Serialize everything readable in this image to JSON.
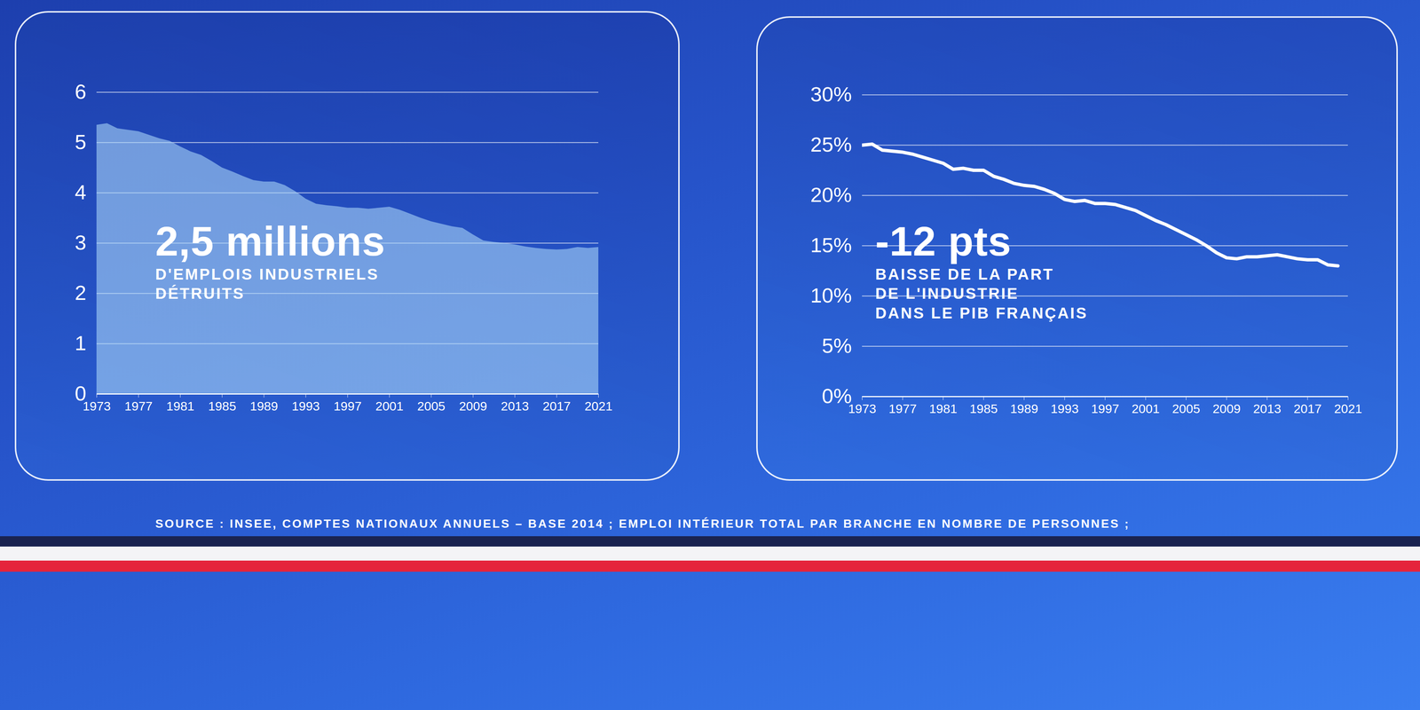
{
  "chart_data": [
    {
      "type": "area",
      "title": "2,5 millions",
      "subtitle": "D'EMPLOIS INDUSTRIELS\nDÉTRUITS",
      "x": [
        1973,
        1974,
        1975,
        1976,
        1977,
        1978,
        1979,
        1980,
        1981,
        1982,
        1983,
        1984,
        1985,
        1986,
        1987,
        1988,
        1989,
        1990,
        1991,
        1992,
        1993,
        1994,
        1995,
        1996,
        1997,
        1998,
        1999,
        2000,
        2001,
        2002,
        2003,
        2004,
        2005,
        2006,
        2007,
        2008,
        2009,
        2010,
        2011,
        2012,
        2013,
        2014,
        2015,
        2016,
        2017,
        2018,
        2019,
        2020,
        2021
      ],
      "values": [
        5.35,
        5.38,
        5.28,
        5.25,
        5.22,
        5.15,
        5.08,
        5.03,
        4.92,
        4.82,
        4.75,
        4.63,
        4.5,
        4.42,
        4.33,
        4.25,
        4.22,
        4.22,
        4.15,
        4.03,
        3.88,
        3.78,
        3.75,
        3.73,
        3.7,
        3.7,
        3.68,
        3.7,
        3.72,
        3.66,
        3.58,
        3.5,
        3.43,
        3.38,
        3.33,
        3.3,
        3.17,
        3.05,
        3.02,
        3.0,
        2.97,
        2.93,
        2.9,
        2.88,
        2.87,
        2.88,
        2.92,
        2.9,
        2.92
      ],
      "color": "#a9d3f7",
      "xlim": [
        1973,
        2021
      ],
      "xticks": [
        1973,
        1977,
        1981,
        1985,
        1989,
        1993,
        1997,
        2001,
        2005,
        2009,
        2013,
        2017,
        2021
      ],
      "ylim": [
        0,
        6
      ],
      "yticks": [
        0,
        1,
        2,
        3,
        4,
        5,
        6
      ],
      "grid": true
    },
    {
      "type": "line",
      "title": "-12 pts",
      "subtitle": "BAISSE DE LA PART\nDE L'INDUSTRIE\nDANS LE PIB FRANÇAIS",
      "x": [
        1973,
        1974,
        1975,
        1976,
        1977,
        1978,
        1979,
        1980,
        1981,
        1982,
        1983,
        1984,
        1985,
        1986,
        1987,
        1988,
        1989,
        1990,
        1991,
        1992,
        1993,
        1994,
        1995,
        1996,
        1997,
        1998,
        1999,
        2000,
        2001,
        2002,
        2003,
        2004,
        2005,
        2006,
        2007,
        2008,
        2009,
        2010,
        2011,
        2012,
        2013,
        2014,
        2015,
        2016,
        2017,
        2018,
        2019,
        2020
      ],
      "values": [
        25.0,
        25.1,
        24.5,
        24.4,
        24.3,
        24.1,
        23.8,
        23.5,
        23.2,
        22.6,
        22.7,
        22.5,
        22.5,
        21.9,
        21.6,
        21.2,
        21.0,
        20.9,
        20.6,
        20.2,
        19.6,
        19.4,
        19.5,
        19.2,
        19.2,
        19.1,
        18.8,
        18.5,
        18.0,
        17.5,
        17.1,
        16.6,
        16.1,
        15.6,
        15.0,
        14.3,
        13.8,
        13.7,
        13.9,
        13.9,
        14.0,
        14.1,
        13.9,
        13.7,
        13.6,
        13.6,
        13.1,
        13.0
      ],
      "color": "#ffffff",
      "xlim": [
        1973,
        2021
      ],
      "xticks": [
        1973,
        1977,
        1981,
        1985,
        1989,
        1993,
        1997,
        2001,
        2005,
        2009,
        2013,
        2017,
        2021
      ],
      "ylim": [
        0,
        30
      ],
      "yticks": [
        {
          "value": 0,
          "label": "0%"
        },
        {
          "value": 5,
          "label": "5%"
        },
        {
          "value": 10,
          "label": "10%"
        },
        {
          "value": 15,
          "label": "15%"
        },
        {
          "value": 20,
          "label": "20%"
        },
        {
          "value": 25,
          "label": "25%"
        },
        {
          "value": 30,
          "label": "30%"
        }
      ],
      "grid": true
    }
  ],
  "source": "SOURCE : INSEE, COMPTES NATIONAUX ANNUELS – BASE 2014 ; EMPLOI INTÉRIEUR TOTAL PAR BRANCHE EN NOMBRE DE PERSONNES ;"
}
